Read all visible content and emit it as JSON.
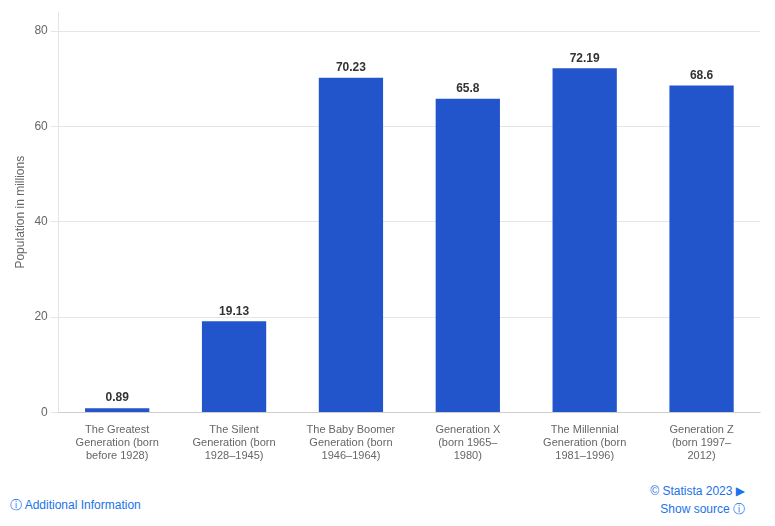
{
  "chart_data": {
    "type": "bar",
    "categories": [
      "The Greatest\nGeneration (born\nbefore 1928)",
      "The Silent\nGeneration (born\n1928–1945)",
      "The Baby Boomer\nGeneration (born\n1946–1964)",
      "Generation X\n(born 1965–\n1980)",
      "The Millennial\nGeneration (born\n1981–1996)",
      "Generation Z\n(born 1997–\n2012)"
    ],
    "values": [
      0.89,
      19.13,
      70.23,
      65.8,
      72.19,
      68.6
    ],
    "color": "#2255CC",
    "y_label": "Population in millions",
    "ylim": [
      0,
      84
    ],
    "yticks": [
      0,
      20,
      40,
      60,
      80
    ],
    "grid": true,
    "data_labels": true,
    "annotations": [
      "ⓘ  Additional Information",
      "© Statista 2023  ▶",
      "Show source  ⓘ"
    ]
  }
}
